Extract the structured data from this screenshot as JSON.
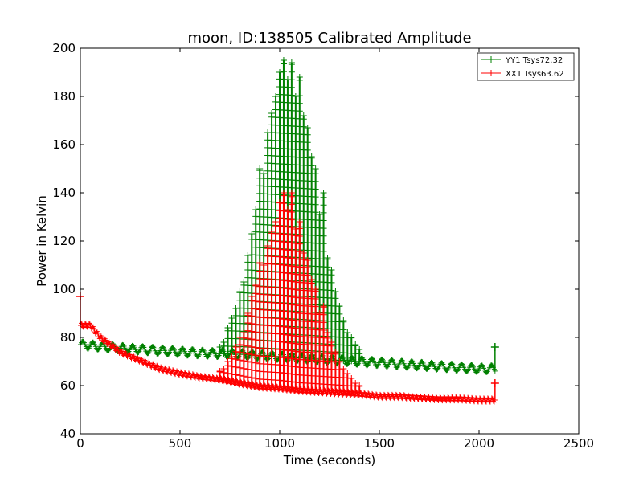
{
  "chart_data": {
    "type": "line",
    "title": "moon, ID:138505 Calibrated Amplitude",
    "xlabel": "Time (seconds)",
    "ylabel": "Power in Kelvin",
    "xlim": [
      0,
      2500
    ],
    "ylim": [
      40,
      200
    ],
    "xticks": [
      0,
      500,
      1000,
      1500,
      2000,
      2500
    ],
    "yticks": [
      40,
      60,
      80,
      100,
      120,
      140,
      160,
      180,
      200
    ],
    "grid": false,
    "legend_position": "top-right",
    "marker": "+",
    "series": [
      {
        "name": "YY1 Tsys72.32",
        "color": "#008000",
        "baseline": [
          [
            0,
            77
          ],
          [
            200,
            75.5
          ],
          [
            400,
            74.5
          ],
          [
            600,
            73.5
          ],
          [
            800,
            73
          ],
          [
            1000,
            72
          ],
          [
            1200,
            71
          ],
          [
            1400,
            70
          ],
          [
            1600,
            69
          ],
          [
            1800,
            68
          ],
          [
            2000,
            67
          ],
          [
            2080,
            67
          ]
        ],
        "oscillation": {
          "amplitude": 1.6,
          "period": 50
        },
        "peaks": [
          [
            700,
            76
          ],
          [
            720,
            78
          ],
          [
            740,
            84
          ],
          [
            760,
            88
          ],
          [
            780,
            92
          ],
          [
            800,
            99
          ],
          [
            820,
            103
          ],
          [
            840,
            114
          ],
          [
            860,
            123
          ],
          [
            880,
            133
          ],
          [
            900,
            150
          ],
          [
            920,
            148
          ],
          [
            940,
            165
          ],
          [
            960,
            173
          ],
          [
            980,
            180
          ],
          [
            1000,
            190
          ],
          [
            1020,
            195
          ],
          [
            1040,
            187
          ],
          [
            1060,
            194
          ],
          [
            1080,
            180
          ],
          [
            1100,
            188
          ],
          [
            1120,
            172
          ],
          [
            1140,
            167
          ],
          [
            1160,
            155
          ],
          [
            1180,
            150
          ],
          [
            1200,
            131
          ],
          [
            1220,
            140
          ],
          [
            1240,
            113
          ],
          [
            1260,
            108
          ],
          [
            1280,
            99
          ],
          [
            1300,
            93
          ],
          [
            1320,
            87
          ],
          [
            1340,
            82
          ],
          [
            1360,
            80
          ],
          [
            1380,
            77
          ],
          [
            1400,
            75
          ]
        ],
        "end_point": [
          2080,
          76
        ]
      },
      {
        "name": "XX1 Tsys63.62",
        "color": "#ff0000",
        "baseline": [
          [
            0,
            85
          ],
          [
            50,
            85
          ],
          [
            100,
            80
          ],
          [
            200,
            74
          ],
          [
            300,
            70.5
          ],
          [
            400,
            67
          ],
          [
            500,
            65
          ],
          [
            600,
            63.5
          ],
          [
            700,
            62.5
          ],
          [
            800,
            61
          ],
          [
            900,
            59.5
          ],
          [
            1000,
            59
          ],
          [
            1100,
            58
          ],
          [
            1200,
            57.5
          ],
          [
            1300,
            57
          ],
          [
            1400,
            56.5
          ],
          [
            1500,
            55.5
          ],
          [
            1600,
            55.5
          ],
          [
            1700,
            55
          ],
          [
            1800,
            54.5
          ],
          [
            1900,
            54.5
          ],
          [
            2000,
            54
          ],
          [
            2080,
            54
          ]
        ],
        "oscillation": {
          "amplitude": 0.9,
          "period": 20
        },
        "peaks": [
          [
            700,
            66
          ],
          [
            720,
            67
          ],
          [
            740,
            70
          ],
          [
            760,
            72
          ],
          [
            780,
            76
          ],
          [
            800,
            80
          ],
          [
            820,
            82
          ],
          [
            840,
            90
          ],
          [
            860,
            97
          ],
          [
            880,
            102
          ],
          [
            900,
            111
          ],
          [
            920,
            110
          ],
          [
            940,
            118
          ],
          [
            960,
            124
          ],
          [
            980,
            128
          ],
          [
            1000,
            136
          ],
          [
            1020,
            140
          ],
          [
            1040,
            133
          ],
          [
            1060,
            140
          ],
          [
            1080,
            125
          ],
          [
            1100,
            128
          ],
          [
            1120,
            115
          ],
          [
            1140,
            112
          ],
          [
            1160,
            104
          ],
          [
            1180,
            100
          ],
          [
            1200,
            90
          ],
          [
            1220,
            93
          ],
          [
            1240,
            82
          ],
          [
            1260,
            78
          ],
          [
            1280,
            74
          ],
          [
            1300,
            70
          ],
          [
            1320,
            67
          ],
          [
            1340,
            65
          ],
          [
            1360,
            63
          ],
          [
            1380,
            61
          ],
          [
            1400,
            60
          ]
        ],
        "start_point": [
          0,
          97
        ],
        "end_point": [
          2080,
          61
        ]
      }
    ]
  }
}
